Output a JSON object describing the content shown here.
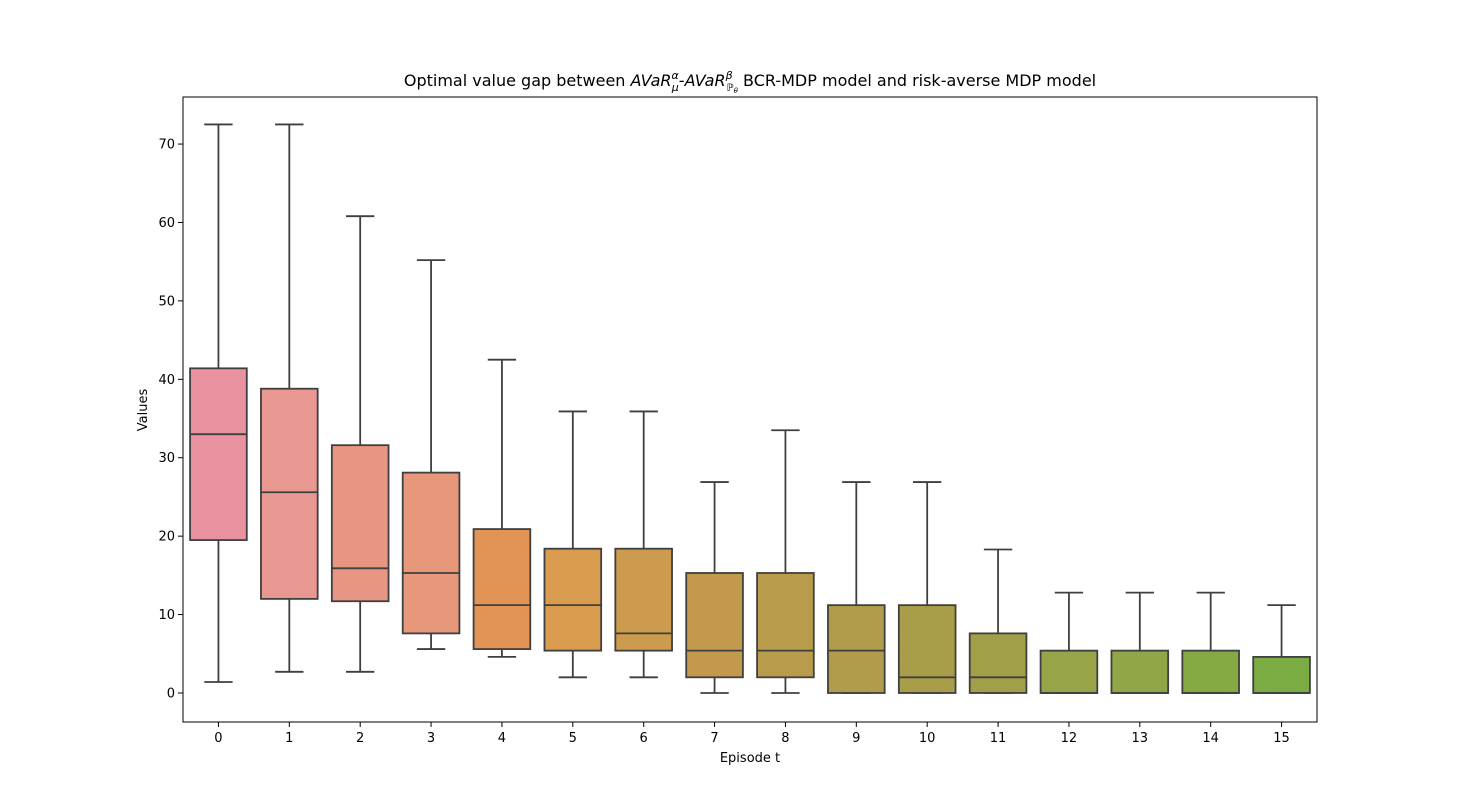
{
  "chart_data": {
    "type": "box",
    "title_parts": {
      "prefix": "Optimal value gap between ",
      "term1": "AVaR",
      "term1_sup": "α",
      "term1_sub": "μ",
      "sep": "-",
      "term2": "AVaR",
      "term2_sup": "β",
      "term2_sub": "ℙ",
      "term2_sub_sub": "θ",
      "suffix": " BCR-MDP model and risk-averse MDP model"
    },
    "xlabel": "Episode t",
    "ylabel": "Values",
    "ylim": [
      -3.7,
      76.0
    ],
    "yticks": [
      0,
      10,
      20,
      30,
      40,
      50,
      60,
      70
    ],
    "categories": [
      "0",
      "1",
      "2",
      "3",
      "4",
      "5",
      "6",
      "7",
      "8",
      "9",
      "10",
      "11",
      "12",
      "13",
      "14",
      "15"
    ],
    "boxes": [
      {
        "min": 1.4,
        "q1": 19.5,
        "median": 33.0,
        "q3": 41.4,
        "max": 72.5,
        "color": "#e8939f"
      },
      {
        "min": 2.7,
        "q1": 12.0,
        "median": 25.6,
        "q3": 38.8,
        "max": 72.5,
        "color": "#e99791"
      },
      {
        "min": 2.7,
        "q1": 11.7,
        "median": 15.9,
        "q3": 31.6,
        "max": 60.8,
        "color": "#e89684"
      },
      {
        "min": 5.6,
        "q1": 7.6,
        "median": 15.3,
        "q3": 28.1,
        "max": 55.2,
        "color": "#e8987a"
      },
      {
        "min": 4.6,
        "q1": 5.6,
        "median": 11.2,
        "q3": 20.9,
        "max": 42.5,
        "color": "#e29356"
      },
      {
        "min": 2.0,
        "q1": 5.4,
        "median": 11.2,
        "q3": 18.4,
        "max": 35.9,
        "color": "#d99b4e"
      },
      {
        "min": 2.0,
        "q1": 5.4,
        "median": 7.6,
        "q3": 18.4,
        "max": 35.9,
        "color": "#cd9b4d"
      },
      {
        "min": 0.0,
        "q1": 2.0,
        "median": 5.4,
        "q3": 15.3,
        "max": 26.9,
        "color": "#c39a4c"
      },
      {
        "min": 0.0,
        "q1": 2.0,
        "median": 5.4,
        "q3": 15.3,
        "max": 33.5,
        "color": "#b99c4b"
      },
      {
        "min": 0.0,
        "q1": 0.0,
        "median": 5.4,
        "q3": 11.2,
        "max": 26.9,
        "color": "#b09c4b"
      },
      {
        "min": 0.0,
        "q1": 0.0,
        "median": 2.0,
        "q3": 11.2,
        "max": 26.9,
        "color": "#aa9d4a"
      },
      {
        "min": 0.0,
        "q1": 0.0,
        "median": 2.0,
        "q3": 7.6,
        "max": 18.3,
        "color": "#a29f49"
      },
      {
        "min": 0.0,
        "q1": 0.0,
        "median": 0.0,
        "q3": 5.4,
        "max": 12.8,
        "color": "#99a348"
      },
      {
        "min": 0.0,
        "q1": 0.0,
        "median": 0.0,
        "q3": 5.4,
        "max": 12.8,
        "color": "#91a646"
      },
      {
        "min": 0.0,
        "q1": 0.0,
        "median": 0.0,
        "q3": 5.4,
        "max": 12.8,
        "color": "#87a944"
      },
      {
        "min": 0.0,
        "q1": 0.0,
        "median": 0.0,
        "q3": 4.6,
        "max": 11.2,
        "color": "#7bac43"
      }
    ],
    "line_color": "#3f3f3f"
  }
}
